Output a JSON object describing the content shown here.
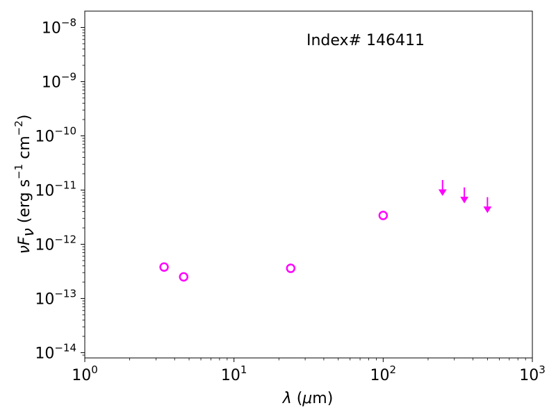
{
  "chart_data": {
    "type": "scatter",
    "annotation": "Index# 146411",
    "xlabel": "λ (μm)",
    "ylabel": "νFν (erg s⁻¹ cm⁻²)",
    "xscale": "log",
    "yscale": "log",
    "xlim": [
      1,
      1000
    ],
    "ylim": [
      8e-15,
      2e-08
    ],
    "x_ticks": [
      {
        "base": "10",
        "exp": "0"
      },
      {
        "base": "10",
        "exp": "1"
      },
      {
        "base": "10",
        "exp": "2"
      },
      {
        "base": "10",
        "exp": "3"
      }
    ],
    "y_ticks": [
      {
        "base": "10",
        "exp": "−14"
      },
      {
        "base": "10",
        "exp": "−13"
      },
      {
        "base": "10",
        "exp": "−12"
      },
      {
        "base": "10",
        "exp": "−11"
      },
      {
        "base": "10",
        "exp": "−10"
      },
      {
        "base": "10",
        "exp": "−9"
      },
      {
        "base": "10",
        "exp": "−8"
      }
    ],
    "detections": [
      {
        "x": 3.4,
        "y": 3.8e-13
      },
      {
        "x": 4.6,
        "y": 2.5e-13
      },
      {
        "x": 24,
        "y": 3.6e-13
      },
      {
        "x": 100,
        "y": 3.4e-12
      }
    ],
    "upper_limits": [
      {
        "x": 250,
        "y": 8.5e-12
      },
      {
        "x": 350,
        "y": 6.2e-12
      },
      {
        "x": 500,
        "y": 4.1e-12
      }
    ],
    "marker_color": "#ff00ff",
    "grid": false
  }
}
